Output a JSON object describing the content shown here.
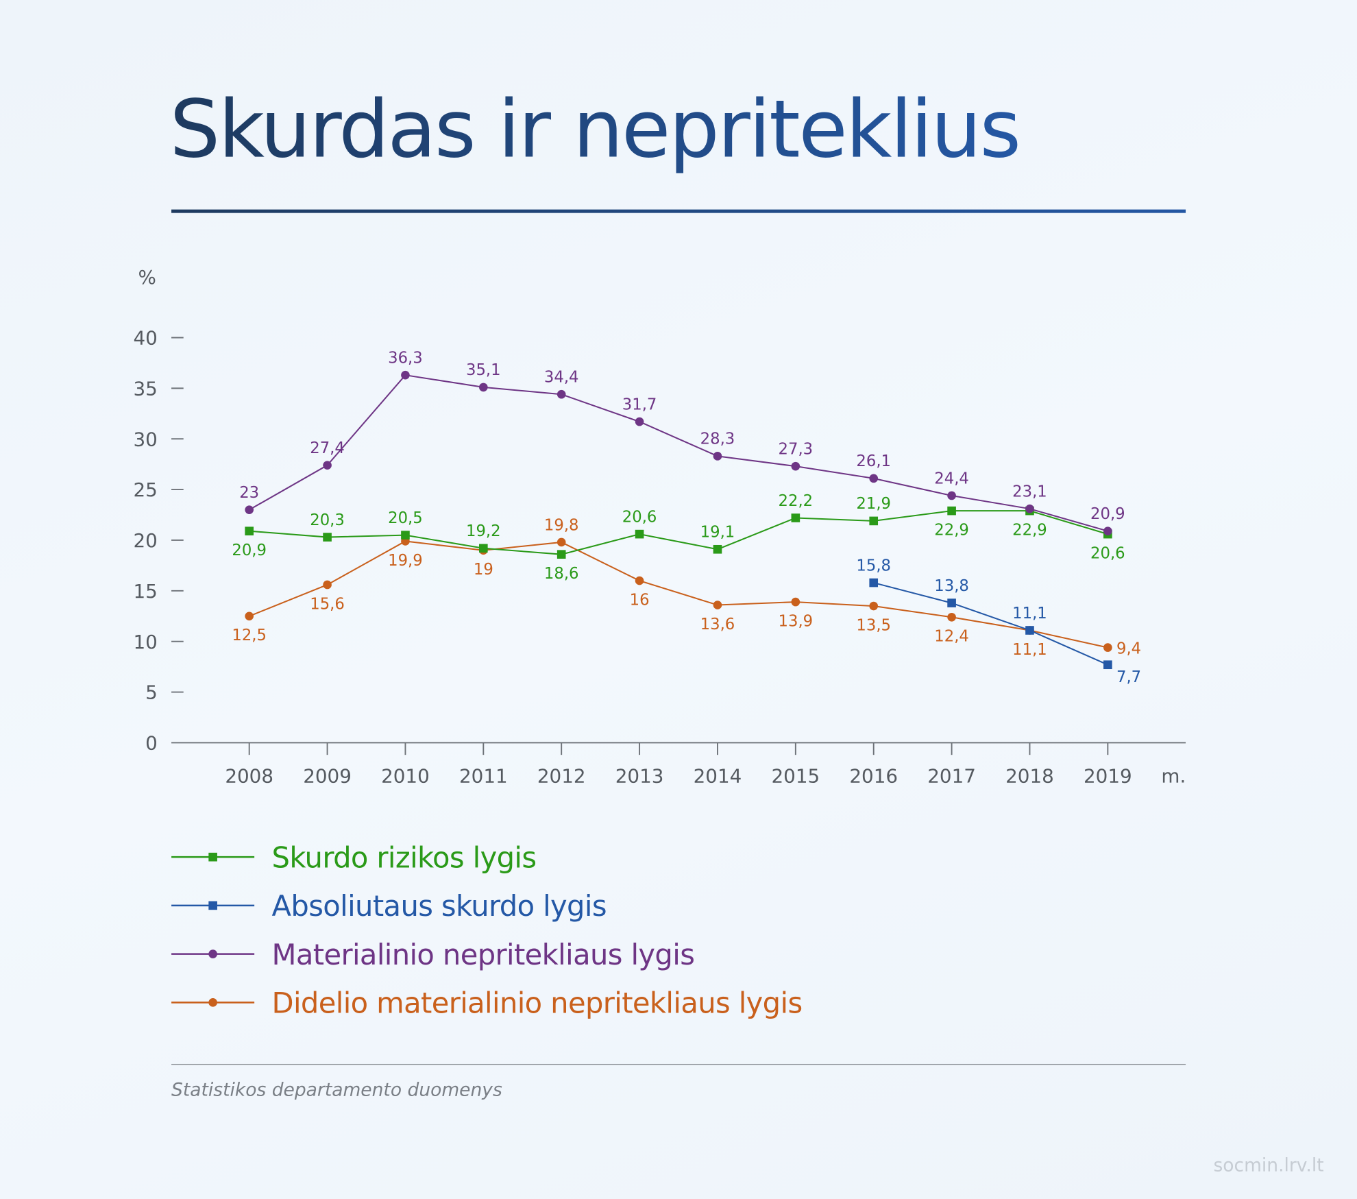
{
  "title": "Skurdas ir nepriteklius",
  "source": "Statistikos departamento duomenys",
  "site": "socmin.lrv.lt",
  "chart_data": {
    "type": "line",
    "ylabel": "%",
    "xlabel": "m.",
    "ylim": [
      0,
      40
    ],
    "yticks": [
      "0",
      "5",
      "10",
      "15",
      "20",
      "25",
      "30",
      "35",
      "40"
    ],
    "categories": [
      "2008",
      "2009",
      "2010",
      "2011",
      "2012",
      "2013",
      "2014",
      "2015",
      "2016",
      "2017",
      "2018",
      "2019"
    ],
    "grid": false,
    "legend_position": "bottom-left",
    "series": [
      {
        "name": "Skurdo rizikos lygis",
        "color": "#2a9a18",
        "marker": "square",
        "values": [
          20.9,
          20.3,
          20.5,
          19.2,
          18.6,
          20.6,
          19.1,
          22.2,
          21.9,
          22.9,
          22.9,
          20.6
        ],
        "labels": [
          "20,9",
          "20,3",
          "20,5",
          "19,2",
          "18,6",
          "20,6",
          "19,1",
          "22,2",
          "21,9",
          "22,9",
          "22,9",
          "20,6"
        ]
      },
      {
        "name": "Absoliutaus skurdo lygis",
        "color": "#2458a6",
        "marker": "square",
        "values": [
          null,
          null,
          null,
          null,
          null,
          null,
          null,
          null,
          15.8,
          13.8,
          11.1,
          7.7
        ],
        "labels": [
          "",
          "",
          "",
          "",
          "",
          "",
          "",
          "",
          "15,8",
          "13,8",
          "11,1",
          "7,7"
        ]
      },
      {
        "name": "Materialinio nepritekliaus lygis",
        "color": "#6e3585",
        "marker": "circle",
        "values": [
          23,
          27.4,
          36.3,
          35.1,
          34.4,
          31.7,
          28.3,
          27.3,
          26.1,
          24.4,
          23.1,
          20.9
        ],
        "labels": [
          "23",
          "27,4",
          "36,3",
          "35,1",
          "34,4",
          "31,7",
          "28,3",
          "27,3",
          "26,1",
          "24,4",
          "23,1",
          "20,9"
        ]
      },
      {
        "name": "Didelio materialinio nepritekliaus lygis",
        "color": "#c9601c",
        "marker": "circle",
        "values": [
          12.5,
          15.6,
          19.9,
          19,
          19.8,
          16,
          13.6,
          13.9,
          13.5,
          12.4,
          11.1,
          9.4
        ],
        "labels": [
          "12,5",
          "15,6",
          "19,9",
          "19",
          "19,8",
          "16",
          "13,6",
          "13,9",
          "13,5",
          "12,4",
          "11,1",
          "9,4"
        ]
      }
    ]
  }
}
